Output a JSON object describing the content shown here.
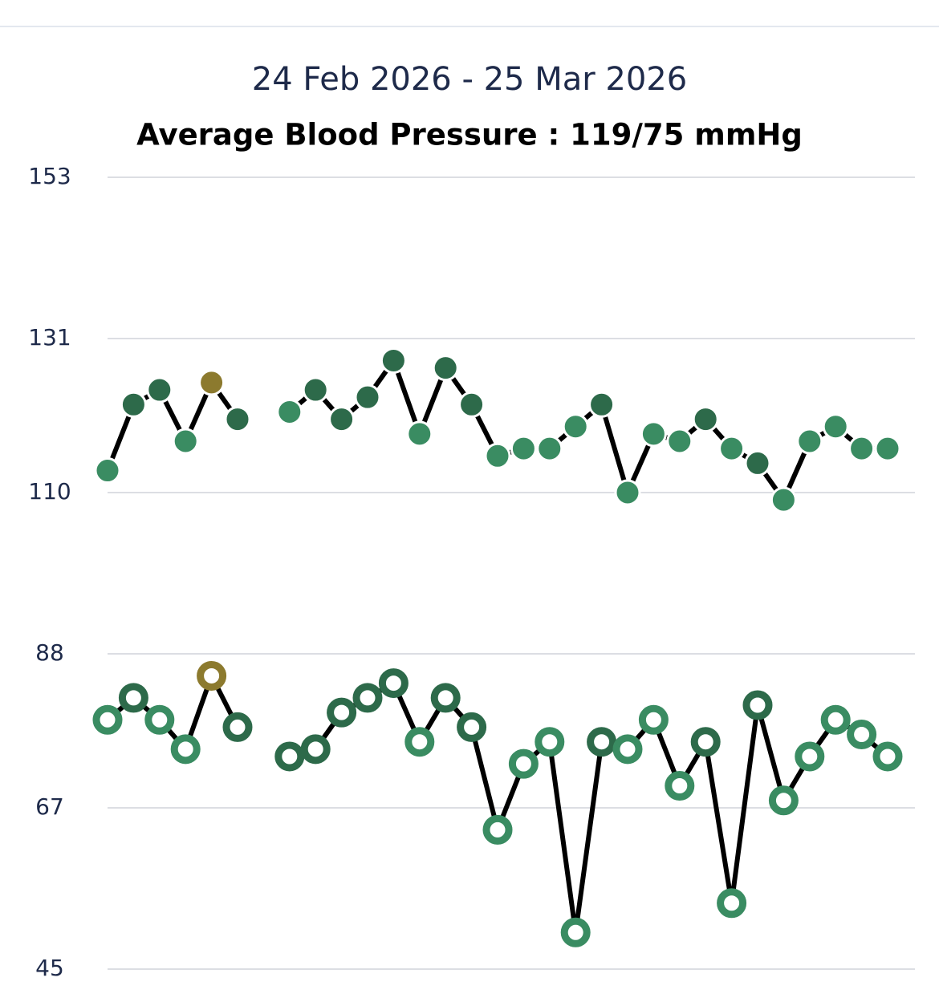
{
  "chart_data": {
    "type": "line",
    "title": "24 Feb 2026 - 25 Mar 2026",
    "subtitle": "Average Blood Pressure : 119/75 mmHg",
    "categories": [
      null,
      null,
      null,
      null,
      null,
      null,
      null,
      null,
      null,
      null,
      null,
      null,
      null,
      null,
      null,
      null,
      null,
      null,
      null,
      null,
      null,
      null,
      null,
      null,
      null,
      null,
      null,
      null,
      null,
      null,
      null
    ],
    "series": [
      {
        "color": "#000000",
        "marker": "filled",
        "values": [
          113,
          122,
          124,
          117,
          125,
          120,
          null,
          121,
          124,
          120,
          123,
          128,
          118,
          127,
          122,
          115,
          116,
          116,
          119,
          122,
          110,
          118,
          117,
          120,
          116,
          114,
          109,
          117,
          119,
          116,
          116
        ],
        "point_colors": [
          "#3a8c62",
          "#2d6a4a",
          "#2d6a4a",
          "#3a8c62",
          "#8c7a2e",
          "#2d6a4a",
          null,
          "#3a8c62",
          "#2d6a4a",
          "#2d6a4a",
          "#2d6a4a",
          "#2d6a4a",
          "#3a8c62",
          "#2d6a4a",
          "#2d6a4a",
          "#3a8c62",
          "#3a8c62",
          "#3a8c62",
          "#3a8c62",
          "#2d6a4a",
          "#3a8c62",
          "#3a8c62",
          "#3a8c62",
          "#2d6a4a",
          "#3a8c62",
          "#2d6a4a",
          "#3a8c62",
          "#3a8c62",
          "#3a8c62",
          "#3a8c62",
          "#3a8c62"
        ]
      },
      {
        "color": "#000000",
        "marker": "ring",
        "values": [
          79,
          82,
          79,
          75,
          85,
          78,
          null,
          74,
          75,
          80,
          82,
          84,
          76,
          82,
          78,
          64,
          73,
          76,
          50,
          76,
          75,
          79,
          70,
          76,
          54,
          81,
          68,
          74,
          79,
          77,
          74
        ],
        "point_colors": [
          "#3a8c62",
          "#2d6a4a",
          "#3a8c62",
          "#3a8c62",
          "#8c7a2e",
          "#2d6a4a",
          null,
          "#2d6a4a",
          "#2d6a4a",
          "#2d6a4a",
          "#2d6a4a",
          "#2d6a4a",
          "#3a8c62",
          "#2d6a4a",
          "#2d6a4a",
          "#3a8c62",
          "#3a8c62",
          "#3a8c62",
          "#3a8c62",
          "#2d6a4a",
          "#3a8c62",
          "#3a8c62",
          "#3a8c62",
          "#2d6a4a",
          "#3a8c62",
          "#2d6a4a",
          "#3a8c62",
          "#3a8c62",
          "#3a8c62",
          "#3a8c62",
          "#3a8c62"
        ]
      }
    ],
    "ylim": [
      45,
      153
    ],
    "yticks": [
      153,
      131,
      110,
      88,
      67,
      45
    ],
    "grid": true
  }
}
